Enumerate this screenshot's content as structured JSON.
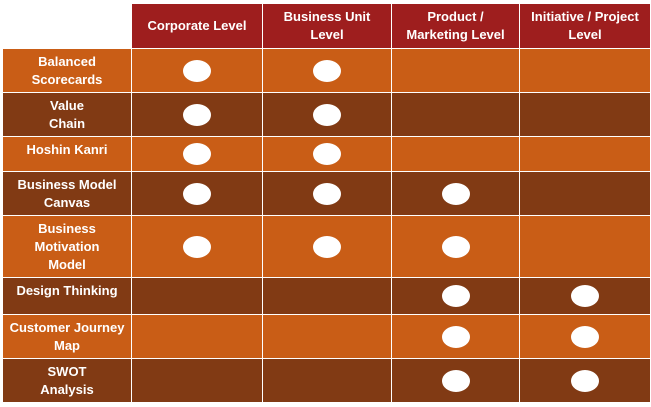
{
  "columns": [
    "Corporate Level",
    "Business Unit\nLevel",
    "Product /\nMarketing Level",
    "Initiative / Project\nLevel"
  ],
  "rows": [
    {
      "label": "Balanced\nScorecards",
      "marks": [
        true,
        true,
        false,
        false
      ]
    },
    {
      "label": "Value\nChain",
      "marks": [
        true,
        true,
        false,
        false
      ]
    },
    {
      "label": "Hoshin Kanri",
      "marks": [
        true,
        true,
        false,
        false
      ]
    },
    {
      "label": "Business Model\nCanvas",
      "marks": [
        true,
        true,
        true,
        false
      ]
    },
    {
      "label": "Business\nMotivation\nModel",
      "marks": [
        true,
        true,
        true,
        false
      ]
    },
    {
      "label": "Design Thinking",
      "marks": [
        false,
        false,
        true,
        true
      ]
    },
    {
      "label": "Customer Journey\nMap",
      "marks": [
        false,
        false,
        true,
        true
      ]
    },
    {
      "label": "SWOT\nAnalysis",
      "marks": [
        false,
        false,
        true,
        true
      ]
    }
  ],
  "colors": {
    "header": "#9e1e1e",
    "row_light": "#c95d16",
    "row_dark": "#813a14",
    "mark": "#ffffff"
  }
}
